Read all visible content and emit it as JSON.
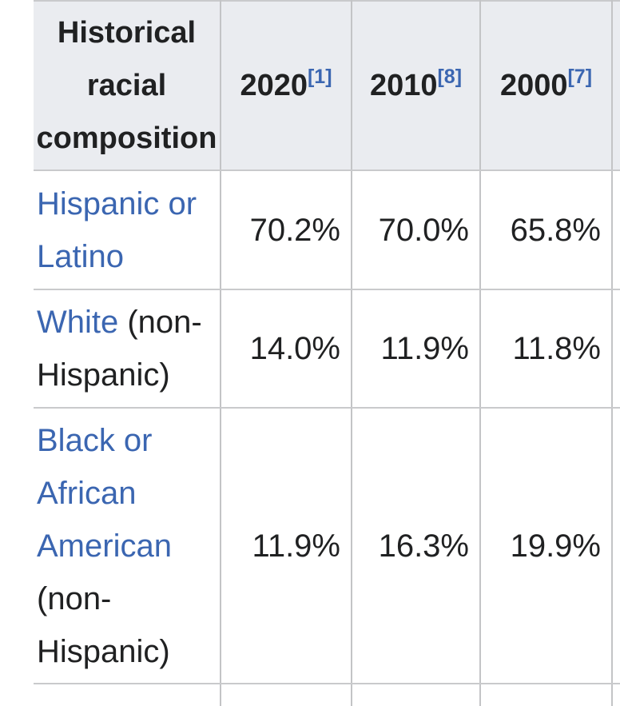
{
  "table": {
    "header": {
      "label": "Historical racial composition",
      "columns": [
        {
          "year": "2020",
          "ref": "[1]"
        },
        {
          "year": "2010",
          "ref": "[8]"
        },
        {
          "year": "2000",
          "ref": "[7]"
        }
      ]
    },
    "rows": [
      {
        "link": "Hispanic or Latino",
        "suffix": "",
        "values": [
          "70.2%",
          "70.0%",
          "65.8%"
        ]
      },
      {
        "link": "White",
        "suffix": " (non-Hispanic)",
        "values": [
          "14.0%",
          "11.9%",
          "11.8%"
        ]
      },
      {
        "link": "Black or African American",
        "suffix": " (non-Hispanic)",
        "values": [
          "11.9%",
          "16.3%",
          "19.9%"
        ]
      }
    ]
  },
  "colors": {
    "header_bg": "#eaecf0",
    "border": "#c9cacc",
    "text": "#202122",
    "link": "#3b66b1"
  }
}
